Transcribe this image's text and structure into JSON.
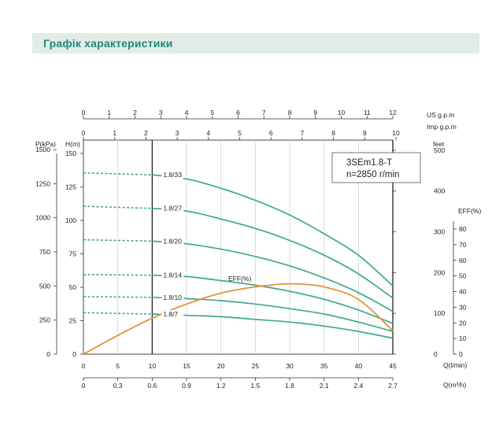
{
  "header": {
    "title": "Графік характеристики"
  },
  "chart_data": {
    "type": "line",
    "model_box": {
      "model": "3SEm1.8-T",
      "speed": "n=2850 r/min"
    },
    "eff_curve_label": "EFF(%)",
    "axes": {
      "us_gpm": {
        "label": "US  g.p.m",
        "ticks": [
          "0",
          "1",
          "2",
          "3",
          "4",
          "5",
          "6",
          "7",
          "8",
          "9",
          "10",
          "11",
          "12"
        ],
        "range": [
          0,
          12
        ]
      },
      "imp_gpm": {
        "label": "Imp  g.p.m",
        "ticks": [
          "0",
          "1",
          "2",
          "3",
          "4",
          "5",
          "6",
          "7",
          "8",
          "9",
          "10"
        ],
        "range": [
          0,
          10
        ]
      },
      "pressure_kpa": {
        "label": "P(kPa)",
        "ticks": [
          "0",
          "250",
          "500",
          "750",
          "1000",
          "1250",
          "1500"
        ],
        "range": [
          0,
          1500
        ]
      },
      "head_m": {
        "label": "H(m)",
        "ticks": [
          "0",
          "25",
          "50",
          "75",
          "100",
          "125",
          "150"
        ],
        "range": [
          0,
          160
        ]
      },
      "feet": {
        "label": "feet",
        "ticks": [
          "0",
          "100",
          "200",
          "300",
          "400",
          "500"
        ],
        "range": [
          0,
          500
        ]
      },
      "efficiency": {
        "label": "EFF(%)",
        "ticks": [
          "0",
          "10",
          "20",
          "30",
          "40",
          "50",
          "60",
          "70",
          "80"
        ],
        "range": [
          0,
          80
        ]
      },
      "flow_lmin": {
        "label": "Q(l/min)",
        "ticks": [
          "0",
          "5",
          "10",
          "15",
          "20",
          "25",
          "30",
          "35",
          "40",
          "45"
        ],
        "range": [
          0,
          45
        ]
      },
      "flow_m3h": {
        "label": "Q(m³/h)",
        "ticks": [
          "0",
          "0.3",
          "0.6",
          "0.9",
          "1.2",
          "1.5",
          "1.8",
          "2.1",
          "2.4",
          "2.7"
        ],
        "range": [
          0,
          2.7
        ]
      }
    },
    "operating_range_lmin": [
      10,
      45
    ],
    "series": [
      {
        "name": "1.8/33",
        "dashed": [
          [
            0,
            135.5
          ],
          [
            10,
            134
          ]
        ],
        "values": [
          [
            10,
            134
          ],
          [
            15,
            131
          ],
          [
            20,
            124
          ],
          [
            25,
            115
          ],
          [
            30,
            104
          ],
          [
            35,
            90
          ],
          [
            40,
            74
          ],
          [
            45,
            51
          ]
        ]
      },
      {
        "name": "1.8/27",
        "dashed": [
          [
            0,
            110.5
          ],
          [
            10,
            109
          ]
        ],
        "values": [
          [
            10,
            109
          ],
          [
            15,
            107
          ],
          [
            20,
            101
          ],
          [
            25,
            94
          ],
          [
            30,
            85
          ],
          [
            35,
            74
          ],
          [
            40,
            60
          ],
          [
            45,
            42
          ]
        ]
      },
      {
        "name": "1.8/20",
        "dashed": [
          [
            0,
            85.5
          ],
          [
            10,
            84.5
          ]
        ],
        "values": [
          [
            10,
            84.5
          ],
          [
            15,
            82.5
          ],
          [
            20,
            78.5
          ],
          [
            25,
            73
          ],
          [
            30,
            66
          ],
          [
            35,
            57
          ],
          [
            40,
            46
          ],
          [
            45,
            32
          ]
        ]
      },
      {
        "name": "1.8/14",
        "dashed": [
          [
            0,
            59.5
          ],
          [
            10,
            59
          ]
        ],
        "values": [
          [
            10,
            59
          ],
          [
            15,
            58
          ],
          [
            20,
            55
          ],
          [
            25,
            51.5
          ],
          [
            30,
            47
          ],
          [
            35,
            41
          ],
          [
            40,
            33
          ],
          [
            45,
            23
          ]
        ]
      },
      {
        "name": "1.8/10",
        "dashed": [
          [
            0,
            43
          ],
          [
            10,
            42.5
          ]
        ],
        "values": [
          [
            10,
            42.5
          ],
          [
            15,
            41.5
          ],
          [
            20,
            40
          ],
          [
            25,
            37.5
          ],
          [
            30,
            34
          ],
          [
            35,
            30
          ],
          [
            40,
            24
          ],
          [
            45,
            17
          ]
        ]
      },
      {
        "name": "1.8/7",
        "dashed": [
          [
            0,
            31
          ],
          [
            10,
            30
          ]
        ],
        "values": [
          [
            10,
            30
          ],
          [
            15,
            29
          ],
          [
            20,
            28
          ],
          [
            25,
            26
          ],
          [
            30,
            24
          ],
          [
            35,
            21
          ],
          [
            40,
            17
          ],
          [
            45,
            12
          ]
        ]
      }
    ],
    "efficiency_series": {
      "name": "EFF(%)",
      "values": [
        [
          0,
          0
        ],
        [
          5,
          12
        ],
        [
          10,
          23
        ],
        [
          15,
          32
        ],
        [
          20,
          39
        ],
        [
          25,
          43
        ],
        [
          30,
          45
        ],
        [
          35,
          43
        ],
        [
          40,
          35
        ],
        [
          45,
          15
        ]
      ]
    },
    "colors": {
      "curve": "#3daa8e",
      "efficiency": "#e2943b",
      "header_bg": "#e2ece6",
      "header_text": "#1f8a78"
    }
  }
}
